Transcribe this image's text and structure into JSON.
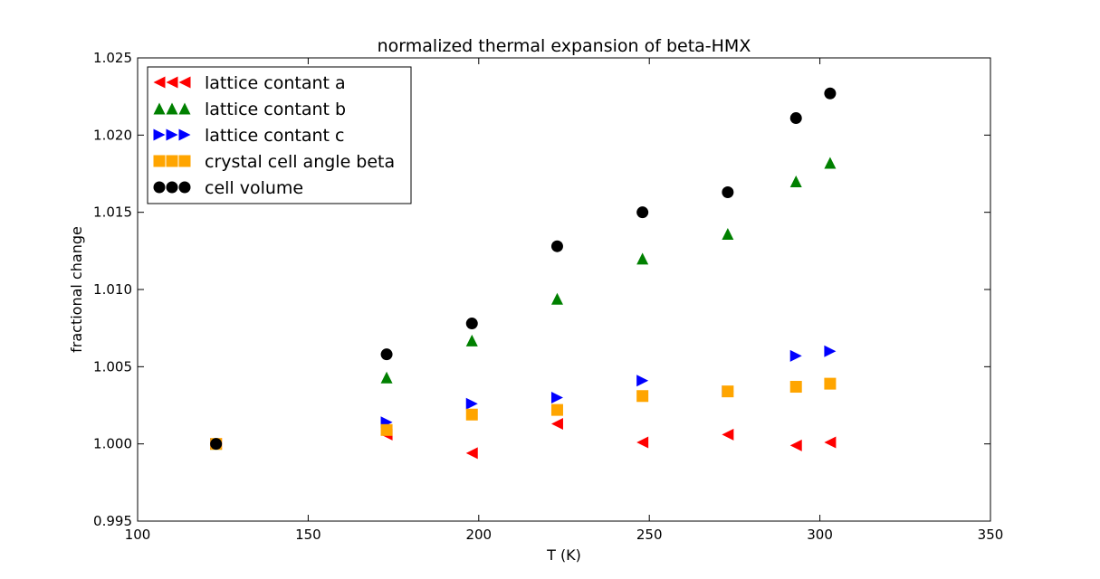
{
  "chart_data": {
    "type": "scatter",
    "title": "normalized thermal expansion of beta-HMX",
    "xlabel": "T (K)",
    "ylabel": "fractional change",
    "xlim": [
      100,
      350
    ],
    "ylim": [
      0.995,
      1.025
    ],
    "xticks": [
      100,
      150,
      200,
      250,
      300,
      350
    ],
    "xtick_labels": [
      "100",
      "150",
      "200",
      "250",
      "300",
      "350"
    ],
    "yticks": [
      0.995,
      1.0,
      1.005,
      1.01,
      1.015,
      1.02,
      1.025
    ],
    "ytick_labels": [
      "0.995",
      "1.000",
      "1.005",
      "1.010",
      "1.015",
      "1.020",
      "1.025"
    ],
    "grid": false,
    "legend_position": "top-left",
    "series": [
      {
        "name": "lattice contant a",
        "marker": "triangle-left",
        "color": "#ff0000",
        "x": [
          123,
          173,
          198,
          223,
          248,
          273,
          293,
          303
        ],
        "y": [
          1.0,
          1.0006,
          0.9994,
          1.0013,
          1.0001,
          1.0006,
          0.9999,
          1.0001
        ]
      },
      {
        "name": "lattice contant b",
        "marker": "triangle-up",
        "color": "#008000",
        "x": [
          123,
          173,
          198,
          223,
          248,
          273,
          293,
          303
        ],
        "y": [
          1.0,
          1.0043,
          1.0067,
          1.0094,
          1.012,
          1.0136,
          1.017,
          1.0182
        ]
      },
      {
        "name": "lattice contant c",
        "marker": "triangle-right",
        "color": "#0000ff",
        "x": [
          123,
          173,
          198,
          223,
          248,
          273,
          293,
          303
        ],
        "y": [
          1.0,
          1.0014,
          1.0026,
          1.003,
          1.0041,
          1.0034,
          1.0057,
          1.006
        ]
      },
      {
        "name": "crystal cell angle beta",
        "marker": "square",
        "color": "#ffa500",
        "x": [
          123,
          173,
          198,
          223,
          248,
          273,
          293,
          303
        ],
        "y": [
          1.0,
          1.0009,
          1.0019,
          1.0022,
          1.0031,
          1.0034,
          1.0037,
          1.0039
        ]
      },
      {
        "name": "cell volume",
        "marker": "circle",
        "color": "#000000",
        "x": [
          123,
          173,
          198,
          223,
          248,
          273,
          293,
          303
        ],
        "y": [
          1.0,
          1.0058,
          1.0078,
          1.0128,
          1.015,
          1.0163,
          1.0211,
          1.0227
        ]
      }
    ]
  }
}
